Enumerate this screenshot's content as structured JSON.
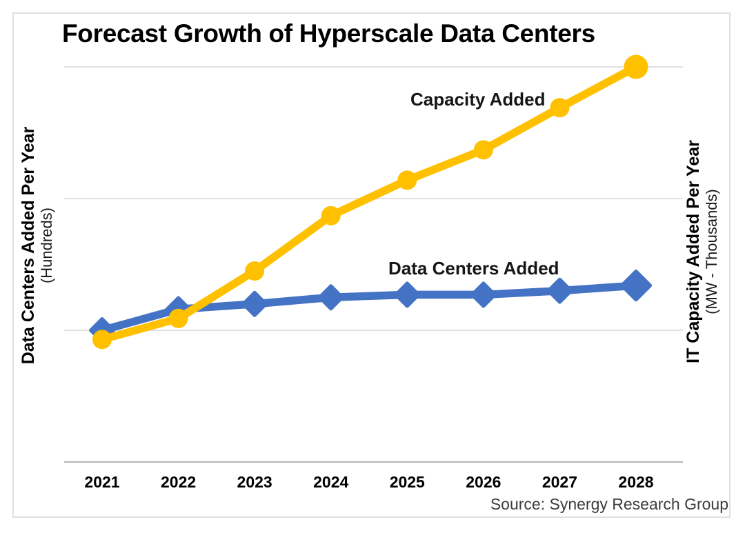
{
  "page": {
    "background": "#ffffff",
    "frame_border_color": "#e0e0e0"
  },
  "title": "Forecast Growth of Hyperscale Data Centers",
  "source_note": "Source: Synergy Research Group",
  "left_axis": {
    "label": "Data Centers Added Per Year",
    "sub_label": "(Hundreds)"
  },
  "right_axis": {
    "label": "IT Capacity Added Per Year",
    "sub_label": "(MW - Thousands)"
  },
  "chart_data": {
    "type": "line",
    "title": "Forecast Growth of Hyperscale Data Centers",
    "categories": [
      "2021",
      "2022",
      "2023",
      "2024",
      "2025",
      "2026",
      "2027",
      "2028"
    ],
    "series": [
      {
        "name": "Data Centers Added",
        "axis": "left",
        "units": "hundreds of data centers added per year",
        "color": "#4472C4",
        "marker": "diamond",
        "values": [
          1.0,
          1.16,
          1.2,
          1.25,
          1.27,
          1.27,
          1.3,
          1.34
        ]
      },
      {
        "name": "Capacity Added",
        "axis": "right",
        "units": "IT capacity added per year, MW thousands",
        "color": "#FFC000",
        "marker": "circle",
        "values": [
          0.93,
          1.09,
          1.45,
          1.87,
          2.14,
          2.37,
          2.69,
          3.0
        ]
      }
    ],
    "value_scale_note": "Chart shows no numeric tick labels; values estimated in gridline units where 1.0 = one gridline interval above the baseline and the top gridline = 3.0",
    "ylim": [
      0,
      3.15
    ],
    "gridlines": [
      1,
      2,
      3
    ],
    "grid_color": "#e2e2e2",
    "axis_line_color": "#b3b3b3",
    "tick_label_color": "#000000",
    "legend_position": "inline-annotations",
    "source": "Source: Synergy Research Group"
  }
}
